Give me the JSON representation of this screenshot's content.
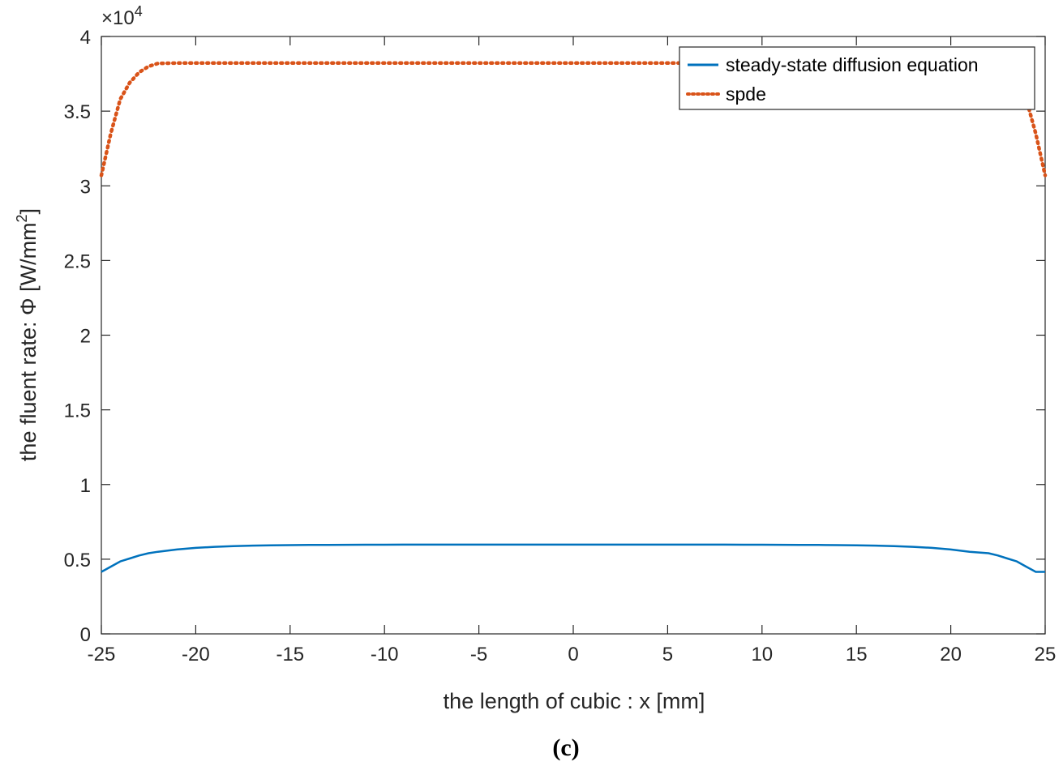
{
  "chart_data": {
    "type": "line",
    "x": [
      -25,
      -24.5,
      -24,
      -23.5,
      -23,
      -22.5,
      -22,
      -21,
      -20,
      -19,
      -18,
      -17,
      -16,
      -15,
      -14,
      -13,
      -12,
      -11,
      -10,
      -9,
      -8,
      -7,
      -6,
      -5,
      -4,
      -3,
      -2,
      -1,
      0,
      1,
      2,
      3,
      4,
      5,
      6,
      7,
      8,
      9,
      10,
      11,
      12,
      13,
      14,
      15,
      16,
      17,
      18,
      19,
      20,
      21,
      22,
      22.5,
      23,
      23.5,
      24,
      24.5,
      25
    ],
    "series": [
      {
        "name": "steady-state diffusion equation",
        "color": "#0072BD",
        "style": "solid",
        "values": [
          4150,
          4500,
          4850,
          5050,
          5250,
          5400,
          5500,
          5650,
          5760,
          5830,
          5880,
          5910,
          5930,
          5945,
          5955,
          5962,
          5967,
          5970,
          5972,
          5973,
          5974,
          5975,
          5975,
          5975,
          5975,
          5975,
          5975,
          5975,
          5975,
          5975,
          5975,
          5975,
          5975,
          5975,
          5975,
          5974,
          5973,
          5972,
          5970,
          5967,
          5962,
          5955,
          5945,
          5930,
          5910,
          5880,
          5830,
          5760,
          5650,
          5500,
          5400,
          5250,
          5050,
          4850,
          4500,
          4150,
          4150
        ]
      },
      {
        "name": "spde",
        "color": "#D95319",
        "style": "dotted",
        "values": [
          30700,
          33500,
          35800,
          36900,
          37600,
          38000,
          38200,
          38220,
          38220,
          38220,
          38220,
          38220,
          38220,
          38220,
          38220,
          38220,
          38220,
          38220,
          38220,
          38220,
          38220,
          38220,
          38220,
          38220,
          38220,
          38220,
          38220,
          38220,
          38220,
          38220,
          38220,
          38220,
          38220,
          38220,
          38220,
          38220,
          38220,
          38220,
          38220,
          38220,
          38220,
          38220,
          38220,
          38220,
          38220,
          38220,
          38220,
          38220,
          38220,
          38220,
          38200,
          38000,
          37600,
          36900,
          35800,
          33500,
          30700
        ]
      }
    ],
    "xlim": [
      -25,
      25
    ],
    "ylim": [
      0,
      40000
    ],
    "xticks": [
      -25,
      -20,
      -15,
      -10,
      -5,
      0,
      5,
      10,
      15,
      20,
      25
    ],
    "yticks": [
      0,
      0.5,
      1,
      1.5,
      2,
      2.5,
      3,
      3.5,
      4
    ],
    "y_scale_multiplier": 10000,
    "y_exponent_label": "×10",
    "y_exponent_power": "4",
    "xlabel": "the length of cubic : x [mm]",
    "ylabel_prefix": "the fluent rate:   Φ [W/mm",
    "ylabel_superscript": "2",
    "ylabel_suffix": "]",
    "legend_position": "top-right",
    "grid": false
  },
  "caption": "(c)"
}
